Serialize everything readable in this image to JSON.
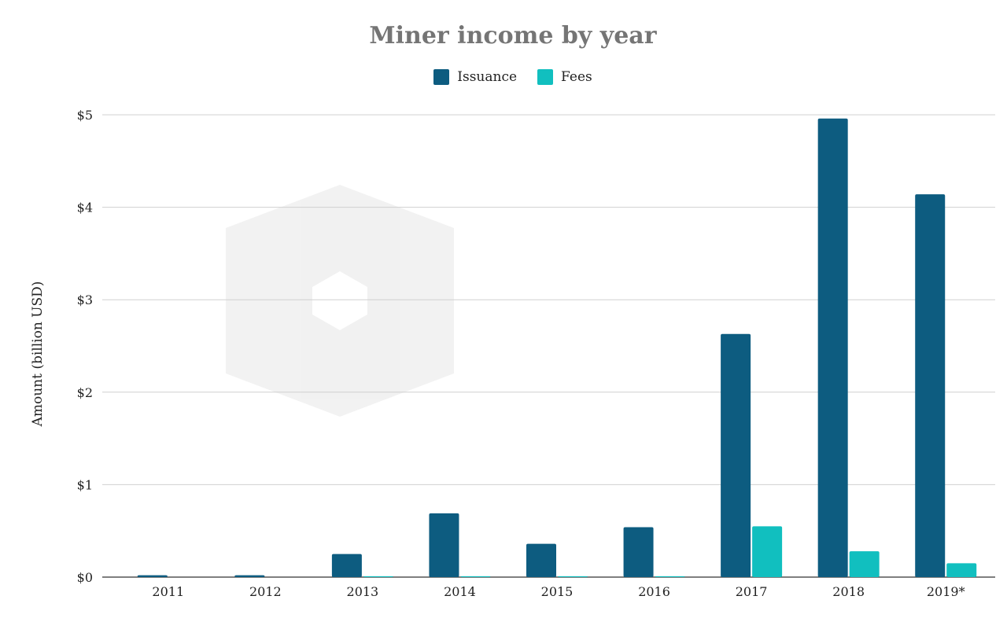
{
  "chart_data": {
    "type": "bar",
    "title": "Miner income by year",
    "ylabel": "Amount (billion USD)",
    "xlabel": "",
    "categories": [
      "2011",
      "2012",
      "2013",
      "2014",
      "2015",
      "2016",
      "2017",
      "2018",
      "2019*"
    ],
    "series": [
      {
        "name": "Issuance",
        "color": "#0d5c80",
        "values": [
          0.02,
          0.02,
          0.25,
          0.69,
          0.36,
          0.54,
          2.63,
          4.96,
          4.14
        ]
      },
      {
        "name": "Fees",
        "color": "#11bfbf",
        "values": [
          0.0,
          0.0,
          0.01,
          0.01,
          0.01,
          0.01,
          0.55,
          0.28,
          0.15
        ]
      }
    ],
    "ylim": [
      0,
      5
    ],
    "yticks": [
      "$0",
      "$1",
      "$2",
      "$3",
      "$4",
      "$5"
    ],
    "grid": true,
    "legend_position": "top-center"
  }
}
